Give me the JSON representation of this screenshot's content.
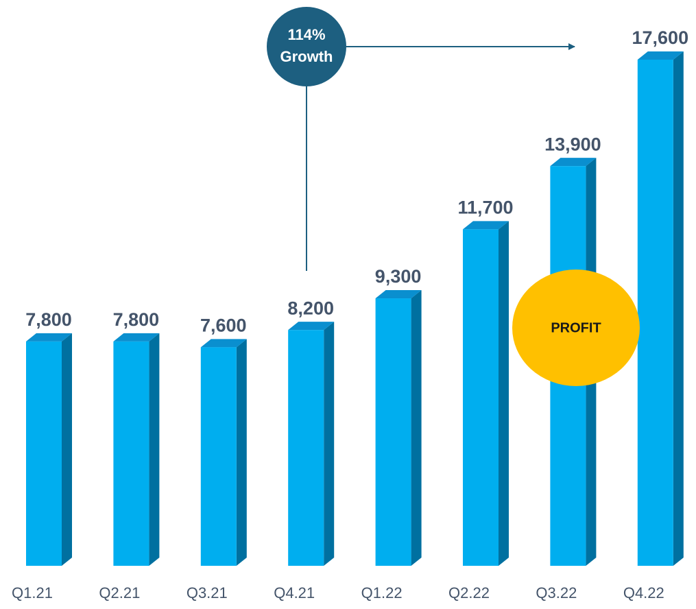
{
  "chart_data": {
    "type": "bar",
    "categories": [
      "Q1.21",
      "Q2.21",
      "Q3.21",
      "Q4.21",
      "Q1.22",
      "Q2.22",
      "Q3.22",
      "Q4.22"
    ],
    "values": [
      7800,
      7800,
      7600,
      8200,
      9300,
      11700,
      13900,
      17600
    ],
    "value_labels": [
      "7,800",
      "7,800",
      "7,600",
      "8,200",
      "9,300",
      "11,700",
      "13,900",
      "17,600"
    ],
    "color": "#00aeef",
    "annotations": [
      "114%",
      "Growth",
      "PROFIT"
    ]
  }
}
